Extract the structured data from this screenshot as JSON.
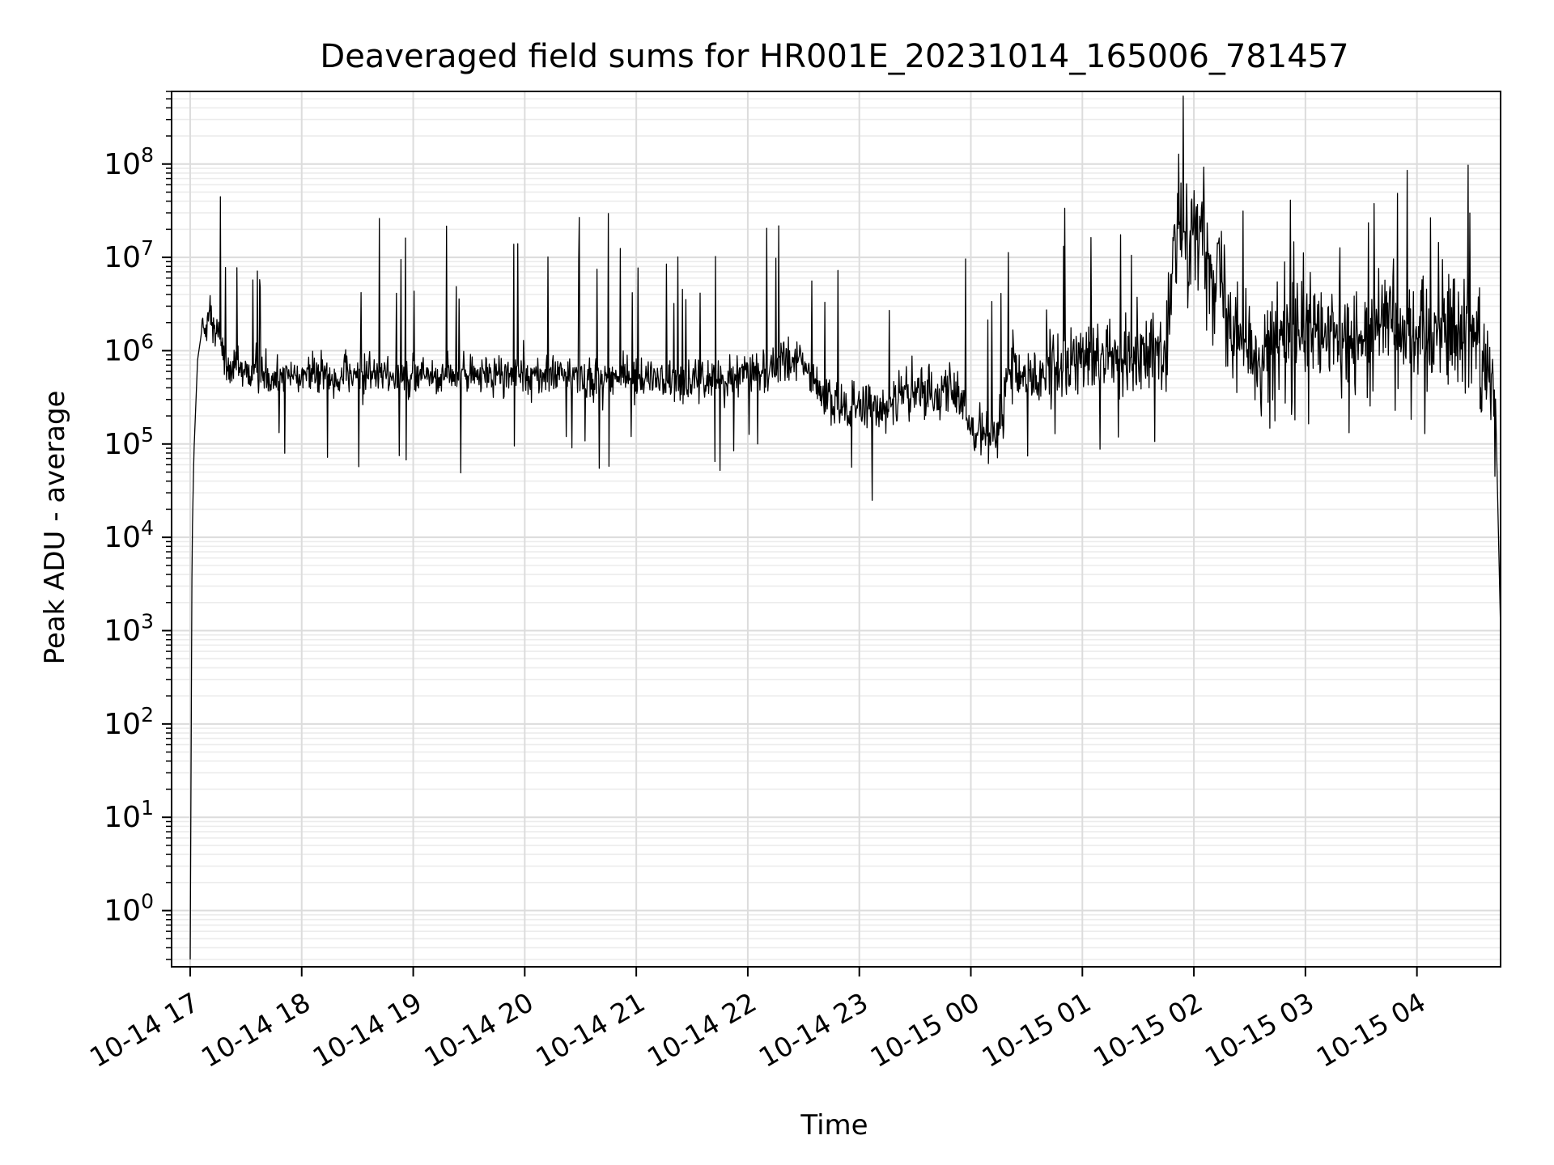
{
  "chart_data": {
    "type": "line",
    "title": "Deaveraged field sums for HR001E_20231014_165006_781457",
    "xlabel": "Time",
    "ylabel": "Peak ADU - average",
    "yscale": "log",
    "ylim": [
      0.25,
      600000000
    ],
    "xlim": [
      "2023-10-14 16:50",
      "2023-10-15 04:45"
    ],
    "grid": "on (major and minor, light gray)",
    "line_color": "#000000",
    "x_ticks": [
      {
        "value": "2023-10-14 17:00",
        "label": "10-14 17"
      },
      {
        "value": "2023-10-14 18:00",
        "label": "10-14 18"
      },
      {
        "value": "2023-10-14 19:00",
        "label": "10-14 19"
      },
      {
        "value": "2023-10-14 20:00",
        "label": "10-14 20"
      },
      {
        "value": "2023-10-14 21:00",
        "label": "10-14 21"
      },
      {
        "value": "2023-10-14 22:00",
        "label": "10-14 22"
      },
      {
        "value": "2023-10-14 23:00",
        "label": "10-14 23"
      },
      {
        "value": "2023-10-15 00:00",
        "label": "10-15 00"
      },
      {
        "value": "2023-10-15 01:00",
        "label": "10-15 01"
      },
      {
        "value": "2023-10-15 02:00",
        "label": "10-15 02"
      },
      {
        "value": "2023-10-15 03:00",
        "label": "10-15 03"
      },
      {
        "value": "2023-10-15 04:00",
        "label": "10-15 04"
      }
    ],
    "y_ticks": [
      {
        "value": 1,
        "base": "10",
        "exp": "0"
      },
      {
        "value": 10,
        "base": "10",
        "exp": "1"
      },
      {
        "value": 100,
        "base": "10",
        "exp": "2"
      },
      {
        "value": 1000,
        "base": "10",
        "exp": "3"
      },
      {
        "value": 10000,
        "base": "10",
        "exp": "4"
      },
      {
        "value": 100000,
        "base": "10",
        "exp": "5"
      },
      {
        "value": 1000000,
        "base": "10",
        "exp": "6"
      },
      {
        "value": 10000000,
        "base": "10",
        "exp": "7"
      },
      {
        "value": 100000000,
        "base": "10",
        "exp": "8"
      }
    ],
    "series": [
      {
        "points": [
          [
            "2023-10-14 17:00",
            0.3
          ],
          [
            "2023-10-14 17:01",
            8000
          ],
          [
            "2023-10-14 17:02",
            80000
          ],
          [
            "2023-10-14 17:04",
            800000
          ],
          [
            "2023-10-14 17:06",
            1500000
          ],
          [
            "2023-10-14 17:10",
            2500000
          ],
          [
            "2023-10-14 17:15",
            1500000
          ],
          [
            "2023-10-14 17:20",
            600000
          ],
          [
            "2023-10-14 18:00",
            550000
          ],
          [
            "2023-10-14 19:00",
            550000
          ],
          [
            "2023-10-14 20:00",
            550000
          ],
          [
            "2023-10-14 21:00",
            500000
          ],
          [
            "2023-10-14 21:30",
            450000
          ],
          [
            "2023-10-14 22:00",
            600000
          ],
          [
            "2023-10-14 22:30",
            800000
          ],
          [
            "2023-10-14 22:40",
            300000
          ],
          [
            "2023-10-14 23:00",
            220000
          ],
          [
            "2023-10-14 23:30",
            350000
          ],
          [
            "2023-10-14 23:50",
            400000
          ],
          [
            "2023-10-15 00:00",
            150000
          ],
          [
            "2023-10-15 00:15",
            120000
          ],
          [
            "2023-10-15 00:20",
            500000
          ],
          [
            "2023-10-15 00:40",
            600000
          ],
          [
            "2023-10-15 01:00",
            800000
          ],
          [
            "2023-10-15 01:30",
            1000000
          ],
          [
            "2023-10-15 01:45",
            900000
          ],
          [
            "2023-10-15 01:50",
            15000000
          ],
          [
            "2023-10-15 02:00",
            25000000
          ],
          [
            "2023-10-15 02:15",
            5000000
          ],
          [
            "2023-10-15 02:30",
            1000000
          ],
          [
            "2023-10-15 03:00",
            1500000
          ],
          [
            "2023-10-15 03:30",
            1200000
          ],
          [
            "2023-10-15 03:45",
            3000000
          ],
          [
            "2023-10-15 04:00",
            1500000
          ],
          [
            "2023-10-15 04:15",
            2000000
          ],
          [
            "2023-10-15 04:30",
            1500000
          ],
          [
            "2023-10-15 04:42",
            500000
          ],
          [
            "2023-10-15 04:45",
            1000
          ]
        ]
      }
    ]
  }
}
